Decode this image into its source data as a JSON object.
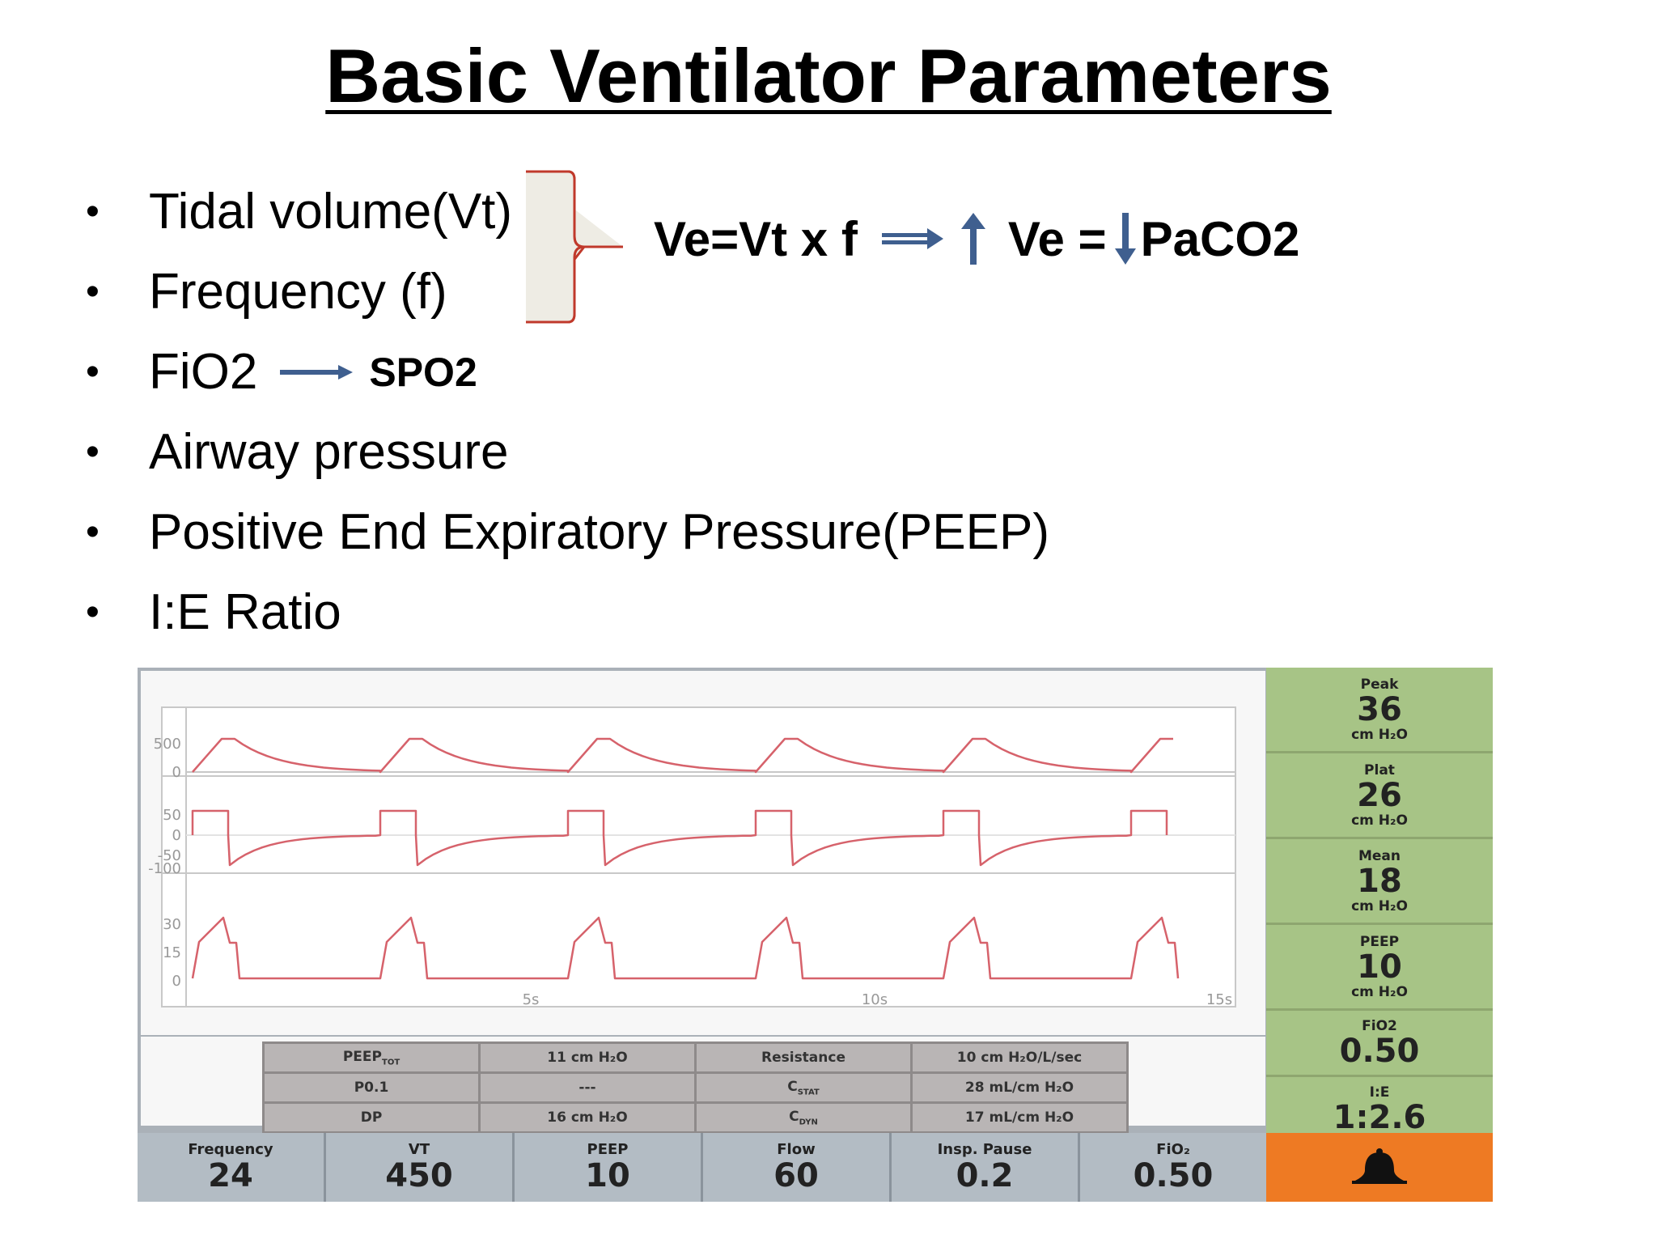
{
  "title": "Basic Ventilator Parameters",
  "bullets": [
    "Tidal volume(Vt)",
    "Frequency (f)",
    "FiO2",
    "Airway pressure",
    "Positive End Expiratory Pressure(PEEP)",
    "I:E Ratio"
  ],
  "fio2_arrow_label": "SPO2",
  "formula": {
    "left": "Ve=Vt x f",
    "middle": "Ve =",
    "right": "PaCO2"
  },
  "colors": {
    "arrow": "#3f5f8f",
    "brace": "#c0392b",
    "waveform": "#d6626b",
    "side_panel": "#a7c486",
    "alarm": "#ee7a23",
    "bottom_panel": "#b3bcc4"
  },
  "ventilator": {
    "graph": {
      "volume_ticks": [
        "500",
        "0"
      ],
      "flow_ticks": [
        "50",
        "0",
        "-50",
        "-100"
      ],
      "pressure_ticks": [
        "30",
        "15",
        "0"
      ],
      "time_ticks": [
        "5s",
        "10s",
        "15s"
      ]
    },
    "mechanics": [
      [
        "PEEP",
        "11 cm H₂O",
        "Resistance",
        "10 cm H₂O/L/sec"
      ],
      [
        "P0.1",
        "---",
        "C",
        "28 mL/cm H₂O"
      ],
      [
        "DP",
        "16 cm H₂O",
        "C",
        "17 mL/cm H₂O"
      ]
    ],
    "mechanics_subscripts": {
      "peep": "TOT",
      "c_stat": "STAT",
      "c_dyn": "DYN"
    },
    "settings": [
      {
        "label": "Frequency",
        "value": "24"
      },
      {
        "label": "VT",
        "value": "450"
      },
      {
        "label": "PEEP",
        "value": "10"
      },
      {
        "label": "Flow",
        "value": "60"
      },
      {
        "label": "Insp. Pause",
        "value": "0.2"
      },
      {
        "label": "FiO₂",
        "value": "0.50"
      }
    ],
    "monitor": [
      {
        "label": "Peak",
        "value": "36",
        "unit": "cm H₂O"
      },
      {
        "label": "Plat",
        "value": "26",
        "unit": "cm H₂O"
      },
      {
        "label": "Mean",
        "value": "18",
        "unit": "cm H₂O"
      },
      {
        "label": "PEEP",
        "value": "10",
        "unit": "cm H₂O"
      },
      {
        "label": "FiO2",
        "value": "0.50"
      },
      {
        "label": "I:E",
        "value": "1:2.6"
      }
    ],
    "alarm_icon": "bell-icon"
  }
}
